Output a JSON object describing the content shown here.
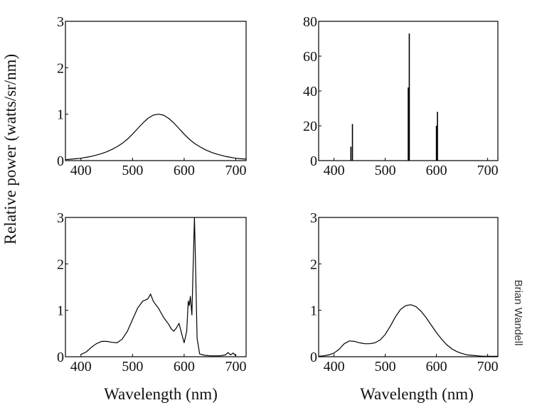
{
  "credit": "Brian Wandell",
  "ylabel": "Relative power (watts/sr/nm)",
  "xlabel": "Wavelength (nm)",
  "chart_data": [
    {
      "type": "line",
      "xlim": [
        370,
        720
      ],
      "ylim": [
        0,
        3
      ],
      "xticks": [
        400,
        500,
        600,
        700
      ],
      "yticks": [
        0,
        1,
        2,
        3
      ],
      "series": [
        {
          "x": [
            370,
            380,
            390,
            400,
            410,
            420,
            430,
            440,
            450,
            460,
            470,
            480,
            490,
            500,
            510,
            520,
            530,
            540,
            550,
            560,
            570,
            580,
            590,
            600,
            610,
            620,
            630,
            640,
            650,
            660,
            670,
            680,
            690,
            700,
            710,
            720
          ],
          "y": [
            0.02,
            0.03,
            0.04,
            0.05,
            0.07,
            0.09,
            0.12,
            0.15,
            0.19,
            0.24,
            0.3,
            0.37,
            0.46,
            0.57,
            0.69,
            0.81,
            0.91,
            0.98,
            1.0,
            0.98,
            0.91,
            0.81,
            0.69,
            0.57,
            0.46,
            0.37,
            0.3,
            0.24,
            0.19,
            0.15,
            0.12,
            0.09,
            0.07,
            0.05,
            0.04,
            0.03
          ]
        }
      ]
    },
    {
      "type": "bar",
      "xlim": [
        370,
        720
      ],
      "ylim": [
        0,
        80
      ],
      "xticks": [
        400,
        500,
        600,
        700
      ],
      "yticks": [
        0,
        20,
        40,
        60,
        80
      ],
      "lines": [
        {
          "x": 433,
          "y": 8
        },
        {
          "x": 436,
          "y": 21
        },
        {
          "x": 545,
          "y": 42
        },
        {
          "x": 547,
          "y": 73
        },
        {
          "x": 600,
          "y": 20
        },
        {
          "x": 602,
          "y": 28
        }
      ]
    },
    {
      "type": "line",
      "xlim": [
        370,
        720
      ],
      "ylim": [
        0,
        3
      ],
      "xticks": [
        400,
        500,
        600,
        700
      ],
      "yticks": [
        0,
        1,
        2,
        3
      ],
      "series": [
        {
          "x": [
            400,
            410,
            420,
            430,
            440,
            450,
            460,
            470,
            480,
            490,
            500,
            510,
            520,
            525,
            530,
            535,
            540,
            545,
            550,
            560,
            570,
            575,
            580,
            585,
            590,
            595,
            600,
            605,
            608,
            610,
            612,
            615,
            617,
            620,
            622,
            625,
            630,
            640,
            650,
            660,
            670,
            680,
            685,
            690,
            695,
            700
          ],
          "y": [
            0.05,
            0.1,
            0.2,
            0.28,
            0.33,
            0.33,
            0.31,
            0.3,
            0.38,
            0.55,
            0.8,
            1.05,
            1.2,
            1.22,
            1.25,
            1.35,
            1.2,
            1.12,
            1.05,
            0.85,
            0.7,
            0.6,
            0.55,
            0.62,
            0.72,
            0.5,
            0.3,
            0.55,
            1.2,
            1.1,
            1.3,
            0.9,
            1.8,
            3.0,
            2.0,
            0.4,
            0.06,
            0.03,
            0.02,
            0.02,
            0.02,
            0.04,
            0.09,
            0.04,
            0.08,
            0.02
          ]
        }
      ]
    },
    {
      "type": "line",
      "xlim": [
        370,
        720
      ],
      "ylim": [
        0,
        3
      ],
      "xticks": [
        400,
        500,
        600,
        700
      ],
      "yticks": [
        0,
        1,
        2,
        3
      ],
      "series": [
        {
          "x": [
            370,
            380,
            390,
            400,
            410,
            420,
            430,
            440,
            450,
            460,
            470,
            480,
            490,
            500,
            510,
            520,
            530,
            540,
            550,
            560,
            570,
            580,
            590,
            600,
            610,
            620,
            630,
            640,
            650,
            660,
            670,
            680,
            690,
            700,
            710,
            720
          ],
          "y": [
            0.01,
            0.02,
            0.04,
            0.08,
            0.16,
            0.28,
            0.34,
            0.33,
            0.3,
            0.28,
            0.28,
            0.3,
            0.36,
            0.48,
            0.66,
            0.86,
            1.02,
            1.1,
            1.12,
            1.08,
            0.98,
            0.84,
            0.68,
            0.52,
            0.38,
            0.26,
            0.17,
            0.11,
            0.07,
            0.04,
            0.03,
            0.02,
            0.01,
            0.01,
            0.01,
            0.01
          ]
        }
      ]
    }
  ]
}
